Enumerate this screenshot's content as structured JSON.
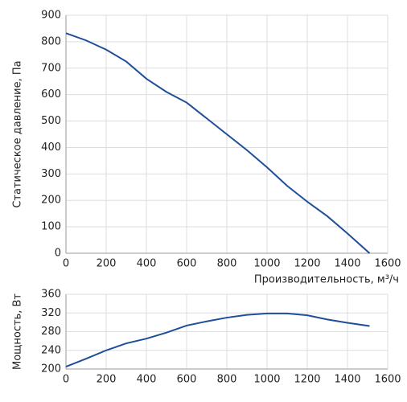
{
  "chart_data": [
    {
      "type": "line",
      "ylabel": "Статическое давление, Па",
      "xlabel": "Производительность, м³/ч",
      "x": [
        0,
        100,
        200,
        300,
        400,
        500,
        600,
        700,
        800,
        900,
        1000,
        1100,
        1200,
        1300,
        1400,
        1510
      ],
      "values": [
        832,
        805,
        770,
        725,
        660,
        610,
        570,
        510,
        450,
        390,
        325,
        255,
        195,
        140,
        75,
        0
      ],
      "color": "#1f4e99",
      "xlim": [
        0,
        1600
      ],
      "ylim": [
        0,
        900
      ],
      "xticks": [
        0,
        200,
        400,
        600,
        800,
        1000,
        1200,
        1400,
        1600
      ],
      "yticks": [
        0,
        100,
        200,
        300,
        400,
        500,
        600,
        700,
        800,
        900
      ],
      "grid": true
    },
    {
      "type": "line",
      "ylabel": "Мощность, Вт",
      "x": [
        0,
        100,
        200,
        300,
        400,
        500,
        600,
        700,
        800,
        900,
        1000,
        1100,
        1200,
        1300,
        1400,
        1510
      ],
      "values": [
        205,
        222,
        240,
        255,
        265,
        278,
        293,
        302,
        310,
        316,
        319,
        319,
        315,
        306,
        299,
        292
      ],
      "color": "#1f4e99",
      "xlim": [
        0,
        1600
      ],
      "ylim": [
        200,
        360
      ],
      "xticks": [
        0,
        200,
        400,
        600,
        800,
        1000,
        1200,
        1400,
        1600
      ],
      "yticks": [
        200,
        240,
        280,
        320,
        360
      ],
      "grid": true
    }
  ]
}
